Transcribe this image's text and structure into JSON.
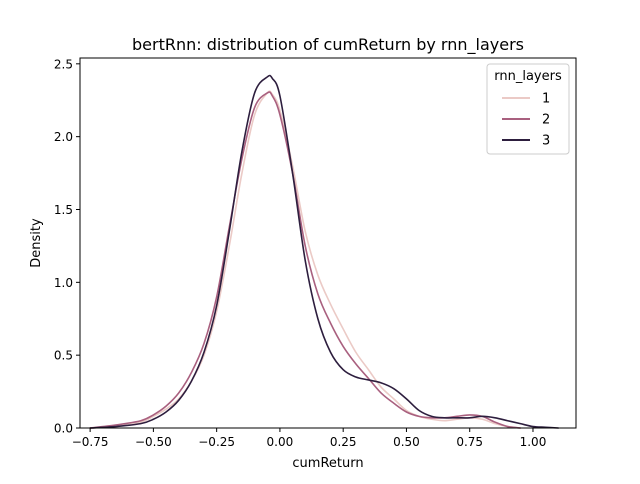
{
  "chart_data": {
    "type": "line",
    "title": "bertRnn: distribution of cumReturn by rnn_layers",
    "xlabel": "cumReturn",
    "ylabel": "Density",
    "xlim": [
      -0.79,
      1.17
    ],
    "ylim": [
      0,
      2.54
    ],
    "xticks": [
      -0.75,
      -0.5,
      -0.25,
      0.0,
      0.25,
      0.5,
      0.75,
      1.0
    ],
    "xtick_labels": [
      "−0.75",
      "−0.50",
      "−0.25",
      "0.00",
      "0.25",
      "0.50",
      "0.75",
      "1.00"
    ],
    "yticks": [
      0.0,
      0.5,
      1.0,
      1.5,
      2.0,
      2.5
    ],
    "ytick_labels": [
      "0.0",
      "0.5",
      "1.0",
      "1.5",
      "2.0",
      "2.5"
    ],
    "grid": false,
    "legend": {
      "title": "rnn_layers",
      "placement": "top-right",
      "entries": [
        "1",
        "2",
        "3"
      ]
    },
    "series": [
      {
        "name": "1",
        "color": "#ebcac6",
        "x": [
          -0.75,
          -0.65,
          -0.55,
          -0.5,
          -0.45,
          -0.4,
          -0.35,
          -0.3,
          -0.25,
          -0.2,
          -0.15,
          -0.1,
          -0.05,
          -0.03,
          0.0,
          0.05,
          0.1,
          0.15,
          0.2,
          0.25,
          0.3,
          0.35,
          0.4,
          0.45,
          0.5,
          0.55,
          0.6,
          0.65,
          0.7,
          0.75,
          0.8,
          0.85,
          0.9,
          0.95
        ],
        "y": [
          0.0,
          0.01,
          0.04,
          0.08,
          0.13,
          0.2,
          0.32,
          0.5,
          0.8,
          1.25,
          1.75,
          2.15,
          2.3,
          2.29,
          2.18,
          1.8,
          1.35,
          1.05,
          0.85,
          0.68,
          0.52,
          0.4,
          0.28,
          0.2,
          0.12,
          0.08,
          0.06,
          0.05,
          0.06,
          0.07,
          0.06,
          0.03,
          0.01,
          0.0
        ]
      },
      {
        "name": "2",
        "color": "#a9607f",
        "x": [
          -0.75,
          -0.65,
          -0.55,
          -0.5,
          -0.45,
          -0.4,
          -0.35,
          -0.3,
          -0.25,
          -0.2,
          -0.15,
          -0.1,
          -0.05,
          -0.03,
          0.0,
          0.05,
          0.1,
          0.15,
          0.2,
          0.25,
          0.3,
          0.35,
          0.4,
          0.45,
          0.5,
          0.55,
          0.6,
          0.65,
          0.7,
          0.75,
          0.8,
          0.85,
          0.9,
          0.95
        ],
        "y": [
          0.0,
          0.02,
          0.05,
          0.09,
          0.15,
          0.24,
          0.38,
          0.58,
          0.9,
          1.38,
          1.85,
          2.2,
          2.3,
          2.28,
          2.15,
          1.75,
          1.25,
          0.92,
          0.72,
          0.56,
          0.44,
          0.34,
          0.24,
          0.17,
          0.11,
          0.08,
          0.07,
          0.07,
          0.08,
          0.09,
          0.08,
          0.04,
          0.01,
          0.0
        ]
      },
      {
        "name": "3",
        "color": "#2d1e3e",
        "x": [
          -0.75,
          -0.65,
          -0.55,
          -0.5,
          -0.45,
          -0.4,
          -0.35,
          -0.3,
          -0.25,
          -0.2,
          -0.15,
          -0.1,
          -0.05,
          -0.03,
          0.0,
          0.05,
          0.1,
          0.15,
          0.2,
          0.25,
          0.3,
          0.35,
          0.4,
          0.45,
          0.5,
          0.55,
          0.6,
          0.65,
          0.7,
          0.75,
          0.8,
          0.85,
          0.9,
          0.95,
          1.0,
          1.05,
          1.1
        ],
        "y": [
          0.0,
          0.01,
          0.03,
          0.06,
          0.11,
          0.19,
          0.32,
          0.52,
          0.84,
          1.35,
          1.9,
          2.3,
          2.41,
          2.4,
          2.28,
          1.75,
          1.15,
          0.75,
          0.52,
          0.4,
          0.35,
          0.33,
          0.31,
          0.27,
          0.2,
          0.12,
          0.08,
          0.07,
          0.07,
          0.07,
          0.08,
          0.07,
          0.05,
          0.03,
          0.01,
          0.005,
          0.0
        ]
      }
    ]
  }
}
